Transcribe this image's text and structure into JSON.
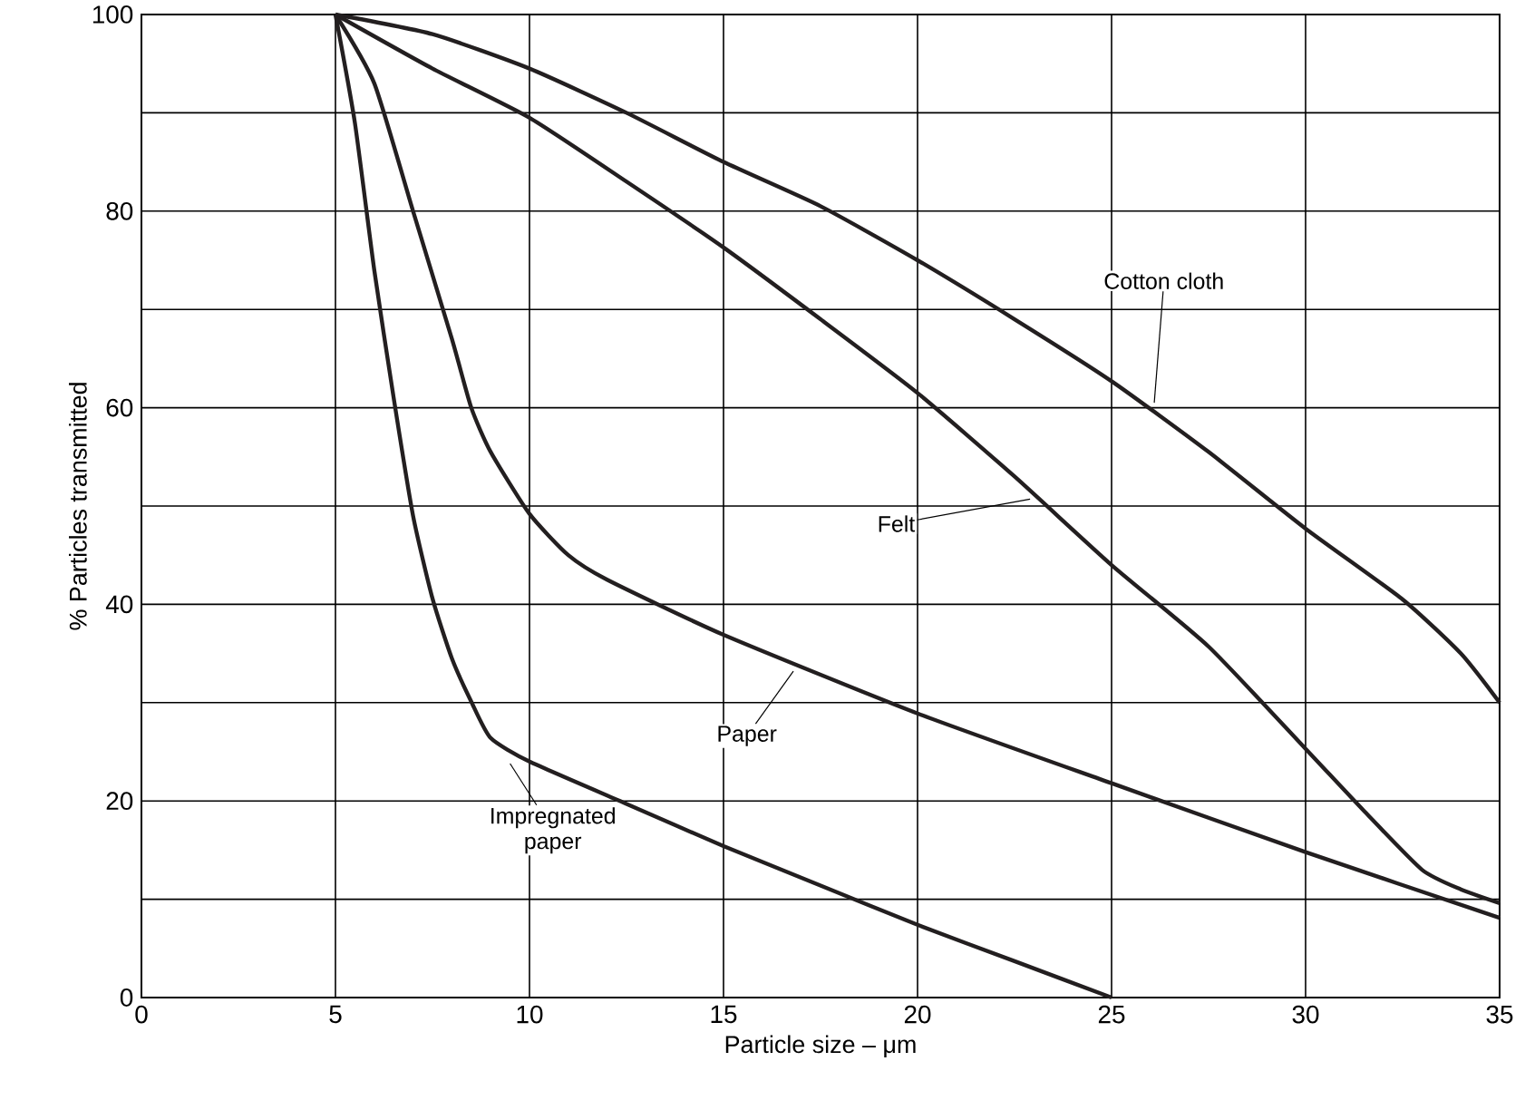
{
  "chart_data": {
    "type": "line",
    "xlabel": "Particle size – μm",
    "ylabel": "% Particles transmitted",
    "xlim": [
      0,
      35
    ],
    "ylim": [
      0,
      100
    ],
    "xticks": [
      0,
      5,
      10,
      15,
      20,
      25,
      30,
      35
    ],
    "yticks": [
      0,
      {
        "value": 10,
        "label": null
      },
      20,
      {
        "value": 30,
        "label": null
      },
      40,
      {
        "value": 50,
        "label": null
      },
      60,
      {
        "value": 70,
        "label": null
      },
      80,
      {
        "value": 90,
        "label": null
      },
      100
    ],
    "grid": true,
    "marker": "none",
    "line_style": "solid",
    "series": [
      {
        "color": "#231f20",
        "x": [
          5,
          7.5,
          10,
          12.5,
          15,
          17.5,
          20,
          22.5,
          25,
          27.5,
          30,
          32.5,
          34,
          35
        ],
        "values": [
          100,
          98,
          94.5,
          90,
          85,
          80.5,
          75,
          69,
          62.7,
          55.5,
          47.7,
          40.5,
          35,
          30
        ]
      },
      {
        "color": "#231f20",
        "x": [
          5,
          7.5,
          10,
          12.5,
          15,
          17.5,
          20,
          22.5,
          25,
          27.5,
          30,
          31.5,
          33,
          34,
          35
        ],
        "values": [
          100,
          94.5,
          89.5,
          83,
          76.3,
          69,
          61.5,
          53,
          44,
          35.7,
          25.3,
          19,
          13,
          11,
          9.6
        ]
      },
      {
        "color": "#231f20",
        "x": [
          5,
          6,
          7,
          8,
          8.5,
          9,
          10,
          11,
          12,
          15,
          20,
          25,
          30,
          35
        ],
        "values": [
          100,
          93,
          80,
          67,
          60,
          55.5,
          49.2,
          45,
          42.5,
          36.9,
          28.9,
          21.8,
          14.8,
          8.1
        ]
      },
      {
        "color": "#231f20",
        "x": [
          5,
          5.5,
          6,
          6.5,
          7,
          7.5,
          8,
          8.5,
          9,
          10,
          12.5,
          15,
          17.5,
          20,
          22.5,
          25
        ],
        "values": [
          100,
          89,
          74,
          61,
          49,
          40.6,
          34.5,
          30.1,
          26.4,
          24,
          19.7,
          15.4,
          11.4,
          7.4,
          3.7,
          0
        ]
      }
    ],
    "annotations": [
      {
        "text": "Cotton cloth",
        "x": 26.1,
        "y": 60.5
      },
      {
        "text": "Felt",
        "x": 22.9,
        "y": 50.7
      },
      {
        "text": "Paper",
        "x": 16.8,
        "y": 33.2
      },
      {
        "text": "Impregnated paper",
        "x": 9.5,
        "y": 23.8
      }
    ]
  }
}
